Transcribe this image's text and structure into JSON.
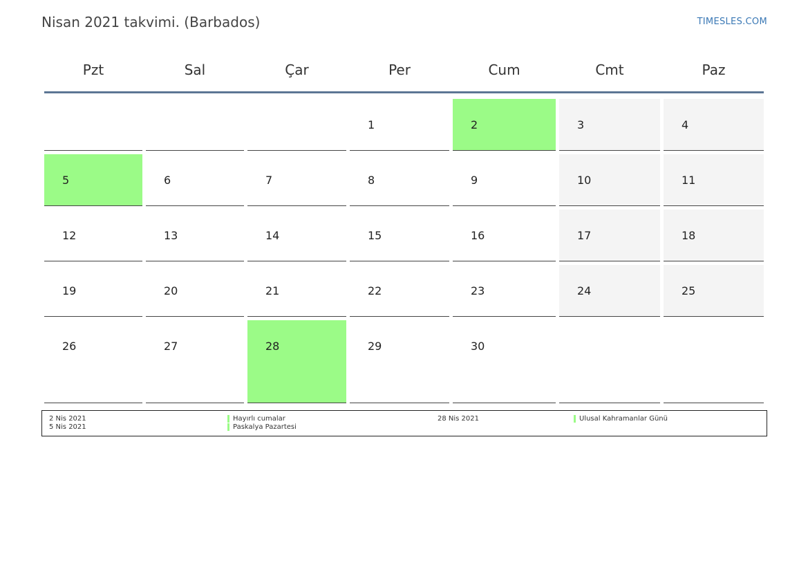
{
  "header": {
    "title": "Nisan 2021 takvimi. (Barbados)",
    "site": "TIMESLES.COM"
  },
  "weekdays": [
    "Pzt",
    "Sal",
    "Çar",
    "Per",
    "Cum",
    "Cmt",
    "Paz"
  ],
  "weeks": [
    [
      "",
      "",
      "",
      "1",
      "2",
      "3",
      "4"
    ],
    [
      "5",
      "6",
      "7",
      "8",
      "9",
      "10",
      "11"
    ],
    [
      "12",
      "13",
      "14",
      "15",
      "16",
      "17",
      "18"
    ],
    [
      "19",
      "20",
      "21",
      "22",
      "23",
      "24",
      "25"
    ],
    [
      "26",
      "27",
      "28",
      "29",
      "30",
      "",
      ""
    ]
  ],
  "holiday_days": [
    "2",
    "5",
    "28"
  ],
  "holiday_color": "#9bfb87",
  "weekend_color": "#f4f4f4",
  "legend": [
    {
      "date": "2 Nis 2021",
      "name": "Hayırlı cumalar"
    },
    {
      "date": "5 Nis 2021",
      "name": "Paskalya Pazartesi"
    },
    {
      "date": "28 Nis 2021",
      "name": "Ulusal Kahramanlar Günü"
    }
  ]
}
